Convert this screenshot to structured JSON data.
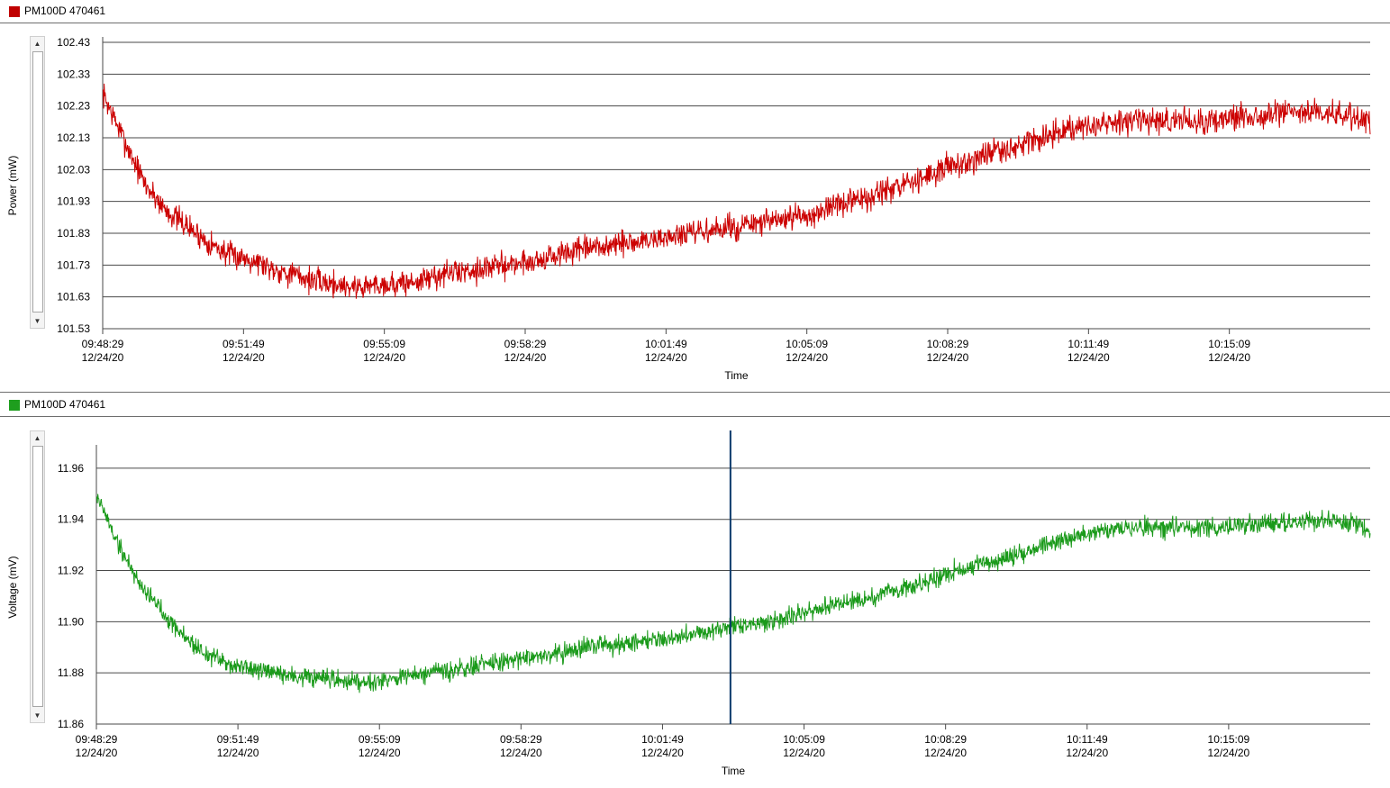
{
  "charts": [
    {
      "legend_label": "PM100D 470461",
      "legend_color": "#c00000",
      "line_color": "#cc0000",
      "ylabel": "Power (mW)",
      "xlabel": "Time"
    },
    {
      "legend_label": "PM100D 470461",
      "legend_color": "#1e9e1e",
      "line_color": "#1a9a1a",
      "ylabel": "Voltage (mV)",
      "xlabel": "Time"
    }
  ],
  "chart_data": [
    {
      "type": "line",
      "title": "",
      "xlabel": "Time",
      "ylabel": "Power (mW)",
      "legend": [
        "PM100D 470461"
      ],
      "yticks": [
        "102.43",
        "102.33",
        "102.23",
        "102.13",
        "102.03",
        "101.93",
        "101.83",
        "101.73",
        "101.63",
        "101.53"
      ],
      "ylim": [
        101.53,
        102.43
      ],
      "xticks": [
        {
          "time": "09:48:29",
          "date": "12/24/20"
        },
        {
          "time": "09:51:49",
          "date": "12/24/20"
        },
        {
          "time": "09:55:09",
          "date": "12/24/20"
        },
        {
          "time": "09:58:29",
          "date": "12/24/20"
        },
        {
          "time": "10:01:49",
          "date": "12/24/20"
        },
        {
          "time": "10:05:09",
          "date": "12/24/20"
        },
        {
          "time": "10:08:29",
          "date": "12/24/20"
        },
        {
          "time": "10:11:49",
          "date": "12/24/20"
        },
        {
          "time": "10:15:09",
          "date": "12/24/20"
        }
      ],
      "xlim": [
        "09:48:29",
        "10:18:29"
      ],
      "grid": true,
      "series": [
        {
          "name": "PM100D 470461",
          "x": [
            "09:48:29",
            "09:49:00",
            "09:49:30",
            "09:50:00",
            "09:50:30",
            "09:51:00",
            "09:51:30",
            "09:52:00",
            "09:52:30",
            "09:53:00",
            "09:53:30",
            "09:54:00",
            "09:54:30",
            "09:55:00",
            "09:55:30",
            "09:56:00",
            "09:56:30",
            "09:57:00",
            "09:57:30",
            "09:58:00",
            "09:58:30",
            "09:59:00",
            "09:59:30",
            "10:00:00",
            "10:00:30",
            "10:01:00",
            "10:01:30",
            "10:02:00",
            "10:02:30",
            "10:03:00",
            "10:03:30",
            "10:04:00",
            "10:04:30",
            "10:05:00",
            "10:05:30",
            "10:06:00",
            "10:06:30",
            "10:07:00",
            "10:07:30",
            "10:08:00",
            "10:08:30",
            "10:09:00",
            "10:09:30",
            "10:10:00",
            "10:10:30",
            "10:11:00",
            "10:11:30",
            "10:12:00",
            "10:12:30",
            "10:13:00",
            "10:13:30",
            "10:14:00",
            "10:14:30",
            "10:15:00",
            "10:15:30",
            "10:16:00",
            "10:16:30",
            "10:17:00",
            "10:17:30",
            "10:18:00",
            "10:18:29"
          ],
          "y": [
            102.27,
            102.12,
            101.98,
            101.9,
            101.85,
            101.8,
            101.76,
            101.75,
            101.72,
            101.7,
            101.68,
            101.67,
            101.66,
            101.67,
            101.67,
            101.68,
            101.7,
            101.71,
            101.72,
            101.73,
            101.74,
            101.75,
            101.77,
            101.78,
            101.79,
            101.8,
            101.81,
            101.82,
            101.83,
            101.84,
            101.85,
            101.86,
            101.87,
            101.88,
            101.9,
            101.92,
            101.94,
            101.96,
            101.98,
            102.01,
            102.04,
            102.06,
            102.08,
            102.1,
            102.12,
            102.14,
            102.16,
            102.17,
            102.18,
            102.18,
            102.18,
            102.19,
            102.18,
            102.19,
            102.2,
            102.2,
            102.21,
            102.21,
            102.21,
            102.2,
            102.18
          ]
        }
      ]
    },
    {
      "type": "line",
      "title": "",
      "xlabel": "Time",
      "ylabel": "Voltage (mV)",
      "legend": [
        "PM100D 470461"
      ],
      "yticks": [
        "11.96",
        "11.94",
        "11.92",
        "11.90",
        "11.88",
        "11.86"
      ],
      "ylim": [
        11.86,
        11.967
      ],
      "xticks": [
        {
          "time": "09:48:29",
          "date": "12/24/20"
        },
        {
          "time": "09:51:49",
          "date": "12/24/20"
        },
        {
          "time": "09:55:09",
          "date": "12/24/20"
        },
        {
          "time": "09:58:29",
          "date": "12/24/20"
        },
        {
          "time": "10:01:49",
          "date": "12/24/20"
        },
        {
          "time": "10:05:09",
          "date": "12/24/20"
        },
        {
          "time": "10:08:29",
          "date": "12/24/20"
        },
        {
          "time": "10:11:49",
          "date": "12/24/20"
        },
        {
          "time": "10:15:09",
          "date": "12/24/20"
        }
      ],
      "xlim": [
        "09:48:29",
        "10:18:29"
      ],
      "grid": true,
      "cursor_time": "10:03:25",
      "series": [
        {
          "name": "PM100D 470461",
          "x": [
            "09:48:29",
            "09:49:00",
            "09:49:30",
            "09:50:00",
            "09:50:30",
            "09:51:00",
            "09:51:30",
            "09:52:00",
            "09:52:30",
            "09:53:00",
            "09:53:30",
            "09:54:00",
            "09:54:30",
            "09:55:00",
            "09:55:30",
            "09:56:00",
            "09:56:30",
            "09:57:00",
            "09:57:30",
            "09:58:00",
            "09:58:30",
            "09:59:00",
            "09:59:30",
            "10:00:00",
            "10:00:30",
            "10:01:00",
            "10:01:30",
            "10:02:00",
            "10:02:30",
            "10:03:00",
            "10:03:30",
            "10:04:00",
            "10:04:30",
            "10:05:00",
            "10:05:30",
            "10:06:00",
            "10:06:30",
            "10:07:00",
            "10:07:30",
            "10:08:00",
            "10:08:30",
            "10:09:00",
            "10:09:30",
            "10:10:00",
            "10:10:30",
            "10:11:00",
            "10:11:30",
            "10:12:00",
            "10:12:30",
            "10:13:00",
            "10:13:30",
            "10:14:00",
            "10:14:30",
            "10:15:00",
            "10:15:30",
            "10:16:00",
            "10:16:30",
            "10:17:00",
            "10:17:30",
            "10:18:00",
            "10:18:29"
          ],
          "y": [
            11.95,
            11.93,
            11.915,
            11.905,
            11.895,
            11.888,
            11.884,
            11.882,
            11.88,
            11.879,
            11.878,
            11.877,
            11.877,
            11.877,
            11.878,
            11.879,
            11.88,
            11.881,
            11.883,
            11.884,
            11.886,
            11.887,
            11.888,
            11.89,
            11.891,
            11.892,
            11.893,
            11.894,
            11.895,
            11.897,
            11.898,
            11.899,
            11.901,
            11.903,
            11.905,
            11.907,
            11.909,
            11.911,
            11.913,
            11.916,
            11.919,
            11.921,
            11.923,
            11.925,
            11.928,
            11.931,
            11.933,
            11.935,
            11.936,
            11.937,
            11.937,
            11.937,
            11.937,
            11.937,
            11.938,
            11.938,
            11.939,
            11.939,
            11.94,
            11.939,
            11.936
          ]
        }
      ]
    }
  ]
}
